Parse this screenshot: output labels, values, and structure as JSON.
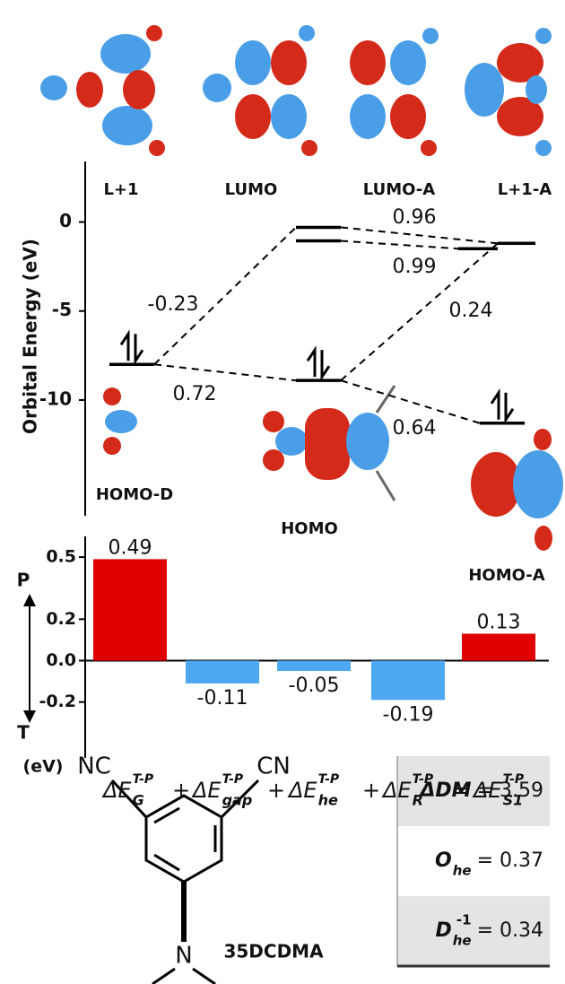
{
  "chart_data": [
    {
      "type": "energy-levels",
      "y_label": "Orbital Energy (eV)",
      "ylim": [
        -16.5,
        3.4
      ],
      "yticks": [
        0,
        -5,
        -10
      ],
      "color": "#000000",
      "levels": [
        {
          "label": "L+1",
          "value": -0.3
        },
        {
          "label": "LUMO",
          "value": -1.06
        },
        {
          "label": "LUMO-A",
          "value": -1.5
        },
        {
          "label": "L+1-A",
          "value": -1.2
        },
        {
          "label": "HOMO-D",
          "value": -8.0
        },
        {
          "label": "HOMO",
          "value": -8.9
        },
        {
          "label": "HOMO-A",
          "value": -11.3
        }
      ],
      "annotations": [
        "0.96",
        "0.99",
        "-0.23",
        "0.24",
        "0.72",
        "0.64"
      ]
    },
    {
      "type": "bar",
      "y_label": "(eV)",
      "direction_labels": [
        "P",
        "T"
      ],
      "categories": [
        {
          "symbol": "ΔE",
          "sup": "T-P",
          "sub": "G"
        },
        {
          "symbol": "ΔE",
          "sup": "T-P",
          "sub": "gap"
        },
        {
          "symbol": "ΔE",
          "sup": "T-P",
          "sub": "he"
        },
        {
          "symbol": "ΔE",
          "sup": "T-P",
          "sub": "R"
        },
        {
          "symbol": "ΔE",
          "sup": "T-P",
          "sub": "S1"
        }
      ],
      "operators": [
        "+",
        "+",
        "+",
        "="
      ],
      "values": [
        0.49,
        -0.11,
        -0.05,
        -0.19,
        0.13
      ],
      "colors": [
        "#e00000",
        "#4ea8f2",
        "#4ea8f2",
        "#4ea8f2",
        "#e00000"
      ],
      "ylim": [
        -0.47,
        0.6
      ],
      "yticks": [
        0.5,
        0.2,
        {
          "value": 0,
          "label": "0.0"
        },
        -0.2
      ]
    }
  ],
  "molecule": {
    "name": "35DCDMA",
    "groups": [
      "NC",
      "CN",
      "N"
    ]
  },
  "table": {
    "rows": [
      {
        "label": "ΔDM",
        "value": "= 3.59"
      },
      {
        "label": "O",
        "sub": "he",
        "value": "= 0.37"
      },
      {
        "label": "D",
        "sup": "-1",
        "sub": "he",
        "value": "= 0.34"
      }
    ]
  }
}
